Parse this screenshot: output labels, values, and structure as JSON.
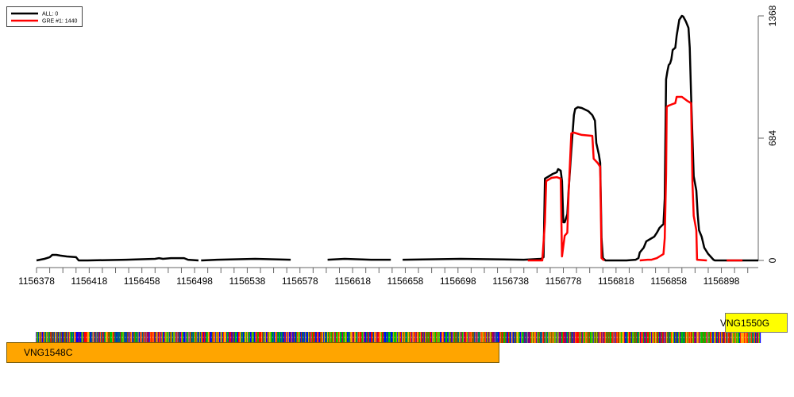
{
  "legend": {
    "entries": [
      {
        "label": "ALL: 0",
        "color": "#000000"
      },
      {
        "label": "GRE #1: 1440",
        "color": "#ff0000"
      }
    ]
  },
  "genes": [
    {
      "name": "VNG1548C",
      "start": 1156341,
      "end": 1156729,
      "color": "#ffa500",
      "strand": "reverse"
    },
    {
      "name": "VNG1550G",
      "start": 1156907,
      "end": 1156950,
      "color": "#ffff00",
      "strand": "forward"
    }
  ],
  "sequence_track": {
    "start": 1156378,
    "end": 1156926,
    "base_colors": {
      "A": "#00c000",
      "C": "#0000ff",
      "G": "#ffa500",
      "T": "#ff0000"
    }
  },
  "chart_data": {
    "type": "line",
    "xlim": [
      1156378,
      1156926
    ],
    "ylim": [
      0,
      1368
    ],
    "x_ticks_major": [
      1156378,
      1156418,
      1156458,
      1156498,
      1156538,
      1156578,
      1156618,
      1156658,
      1156698,
      1156738,
      1156778,
      1156818,
      1156858,
      1156898
    ],
    "x_tick_minor_step": 10,
    "y_ticks": [
      0,
      684,
      1368
    ],
    "y_axis_side": "right",
    "grid": false,
    "legend_position": "top-left",
    "series": [
      {
        "name": "ALL: 0",
        "color": "#000000",
        "segments": [
          [
            [
              1156378,
              0
            ],
            [
              1156384,
              9
            ],
            [
              1156388,
              18
            ],
            [
              1156390,
              31
            ],
            [
              1156393,
              31
            ],
            [
              1156396,
              27
            ],
            [
              1156401,
              22
            ],
            [
              1156408,
              18
            ],
            [
              1156410,
              0
            ],
            [
              1156417,
              0
            ],
            [
              1156446,
              4
            ],
            [
              1156468,
              9
            ],
            [
              1156471,
              13
            ],
            [
              1156474,
              9
            ],
            [
              1156480,
              13
            ],
            [
              1156490,
              13
            ],
            [
              1156493,
              4
            ],
            [
              1156501,
              0
            ]
          ],
          [
            [
              1156503,
              0
            ],
            [
              1156515,
              4
            ],
            [
              1156544,
              9
            ],
            [
              1156571,
              4
            ]
          ],
          [
            [
              1156599,
              4
            ],
            [
              1156612,
              9
            ],
            [
              1156632,
              4
            ],
            [
              1156647,
              4
            ]
          ],
          [
            [
              1156656,
              4
            ],
            [
              1156700,
              9
            ],
            [
              1156748,
              4
            ],
            [
              1156761,
              9
            ],
            [
              1156763,
              18
            ],
            [
              1156764,
              458
            ],
            [
              1156767,
              471
            ],
            [
              1156770,
              484
            ],
            [
              1156773,
              493
            ],
            [
              1156774,
              511
            ],
            [
              1156776,
              502
            ],
            [
              1156777,
              444
            ],
            [
              1156778,
              213
            ],
            [
              1156779,
              213
            ],
            [
              1156781,
              258
            ],
            [
              1156782,
              391
            ],
            [
              1156783,
              502
            ],
            [
              1156784,
              613
            ],
            [
              1156786,
              813
            ],
            [
              1156787,
              848
            ],
            [
              1156789,
              857
            ],
            [
              1156792,
              853
            ],
            [
              1156797,
              835
            ],
            [
              1156800,
              813
            ],
            [
              1156802,
              782
            ],
            [
              1156803,
              657
            ],
            [
              1156805,
              591
            ],
            [
              1156806,
              546
            ],
            [
              1156807,
              124
            ],
            [
              1156808,
              13
            ],
            [
              1156810,
              0
            ],
            [
              1156826,
              0
            ],
            [
              1156833,
              4
            ],
            [
              1156835,
              13
            ],
            [
              1156836,
              44
            ],
            [
              1156839,
              71
            ],
            [
              1156841,
              107
            ],
            [
              1156844,
              120
            ],
            [
              1156847,
              133
            ],
            [
              1156849,
              155
            ],
            [
              1156851,
              182
            ],
            [
              1156854,
              204
            ],
            [
              1156855,
              346
            ],
            [
              1156856,
              1013
            ],
            [
              1156857,
              1057
            ],
            [
              1156858,
              1093
            ],
            [
              1156859,
              1102
            ],
            [
              1156860,
              1124
            ],
            [
              1156861,
              1177
            ],
            [
              1156863,
              1190
            ],
            [
              1156864,
              1257
            ],
            [
              1156866,
              1346
            ],
            [
              1156868,
              1368
            ],
            [
              1156869,
              1364
            ],
            [
              1156871,
              1337
            ],
            [
              1156873,
              1301
            ],
            [
              1156874,
              1190
            ],
            [
              1156875,
              924
            ],
            [
              1156877,
              471
            ],
            [
              1156879,
              391
            ],
            [
              1156880,
              258
            ],
            [
              1156881,
              169
            ],
            [
              1156883,
              133
            ],
            [
              1156885,
              71
            ],
            [
              1156888,
              36
            ],
            [
              1156892,
              4
            ],
            [
              1156893,
              0
            ],
            [
              1156926,
              0
            ]
          ]
        ]
      },
      {
        "name": "GRE #1: 1440",
        "color": "#ff0000",
        "segments": [
          [
            [
              1156751,
              0
            ],
            [
              1156762,
              0
            ],
            [
              1156764,
              213
            ],
            [
              1156765,
              444
            ],
            [
              1156769,
              462
            ],
            [
              1156773,
              466
            ],
            [
              1156776,
              458
            ],
            [
              1156777,
              22
            ],
            [
              1156779,
              138
            ],
            [
              1156781,
              155
            ],
            [
              1156782,
              369
            ],
            [
              1156784,
              711
            ],
            [
              1156786,
              715
            ],
            [
              1156790,
              706
            ],
            [
              1156792,
              702
            ],
            [
              1156800,
              697
            ],
            [
              1156801,
              569
            ],
            [
              1156804,
              546
            ],
            [
              1156806,
              524
            ],
            [
              1156807,
              13
            ],
            [
              1156809,
              0
            ]
          ],
          [
            [
              1156836,
              0
            ],
            [
              1156842,
              4
            ],
            [
              1156845,
              4
            ],
            [
              1156849,
              13
            ],
            [
              1156851,
              22
            ],
            [
              1156854,
              36
            ],
            [
              1156855,
              124
            ],
            [
              1156856,
              480
            ],
            [
              1156856.5,
              857
            ],
            [
              1156857,
              862
            ],
            [
              1156858,
              866
            ],
            [
              1156861,
              875
            ],
            [
              1156863,
              880
            ],
            [
              1156864,
              915
            ],
            [
              1156868,
              915
            ],
            [
              1156872,
              893
            ],
            [
              1156875,
              880
            ],
            [
              1156876,
              435
            ],
            [
              1156877,
              249
            ],
            [
              1156879,
              169
            ],
            [
              1156879.5,
              4
            ],
            [
              1156887,
              0
            ]
          ],
          [
            [
              1156902,
              0
            ],
            [
              1156914,
              0
            ]
          ]
        ]
      }
    ]
  }
}
